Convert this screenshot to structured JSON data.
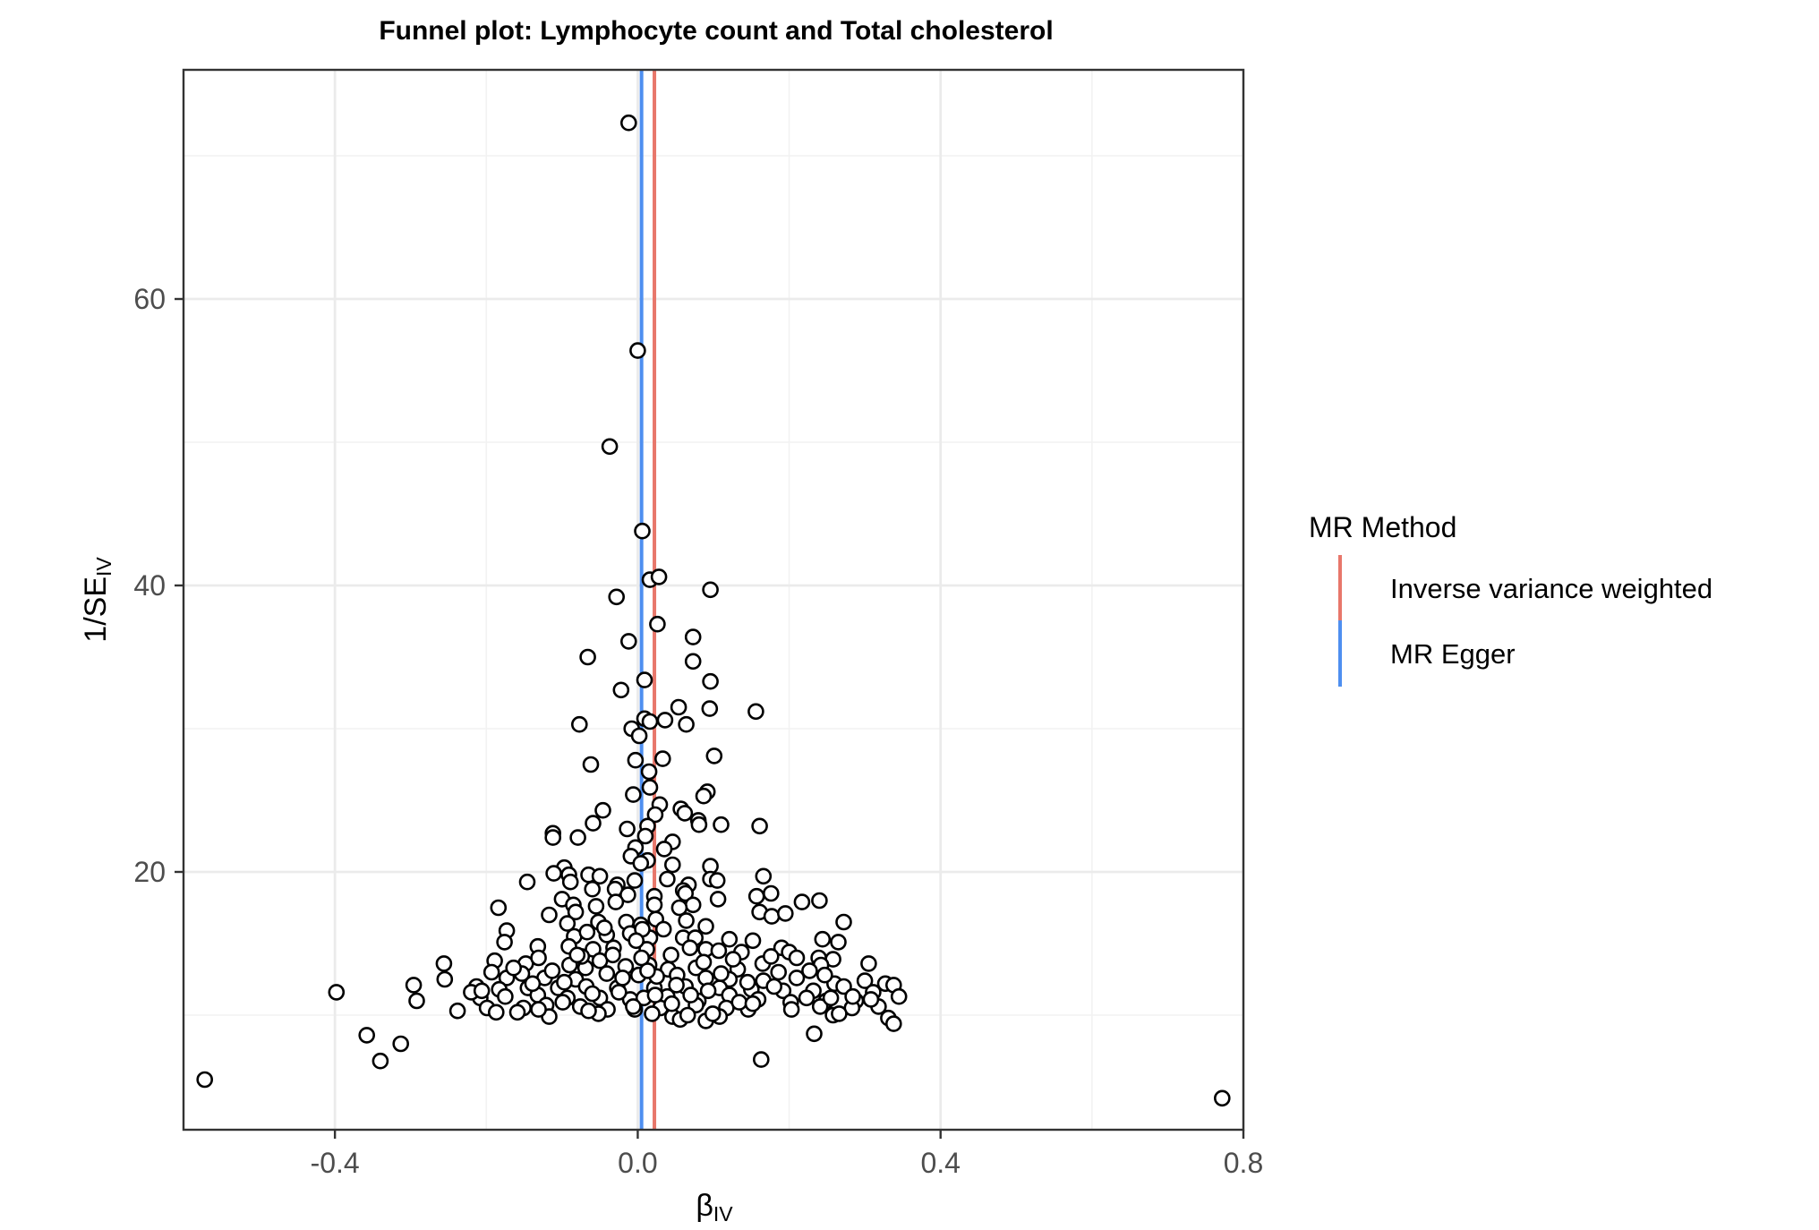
{
  "chart_data": {
    "type": "scatter",
    "title": "Funnel plot: Lymphocyte count and Total cholesterol",
    "xlabel": {
      "main": "β",
      "sub": "IV"
    },
    "ylabel": {
      "main": "1/SE",
      "sub": "IV"
    },
    "xlim": [
      -0.6,
      0.8
    ],
    "ylim": [
      2,
      76
    ],
    "x_ticks": [
      {
        "value": -0.4,
        "label": "-0.4"
      },
      {
        "value": 0.0,
        "label": "0.0"
      },
      {
        "value": 0.4,
        "label": "0.4"
      },
      {
        "value": 0.8,
        "label": "0.8"
      }
    ],
    "y_ticks": [
      {
        "value": 20,
        "label": "20"
      },
      {
        "value": 40,
        "label": "40"
      },
      {
        "value": 60,
        "label": "60"
      }
    ],
    "grid": true,
    "legend": {
      "title": "MR Method",
      "placement": "right",
      "entries": [
        {
          "label": "Inverse variance weighted",
          "color": "#e8776b"
        },
        {
          "label": "MR Egger",
          "color": "#4e8ff0"
        }
      ]
    },
    "lines": [
      {
        "method": "Inverse variance weighted",
        "x": 0.022,
        "color": "#e8776b"
      },
      {
        "method": "MR Egger",
        "x": 0.005,
        "color": "#4e8ff0"
      }
    ],
    "points": [
      [
        -0.012,
        72.3
      ],
      [
        0.0,
        56.4
      ],
      [
        -0.037,
        49.7
      ],
      [
        0.006,
        43.8
      ],
      [
        0.016,
        40.4
      ],
      [
        0.028,
        40.6
      ],
      [
        -0.028,
        39.2
      ],
      [
        0.096,
        39.7
      ],
      [
        0.026,
        37.3
      ],
      [
        -0.012,
        36.1
      ],
      [
        0.073,
        36.4
      ],
      [
        -0.066,
        35.0
      ],
      [
        0.073,
        34.7
      ],
      [
        0.009,
        33.4
      ],
      [
        0.096,
        33.3
      ],
      [
        -0.022,
        32.7
      ],
      [
        0.054,
        31.5
      ],
      [
        0.095,
        31.4
      ],
      [
        0.156,
        31.2
      ],
      [
        0.009,
        30.7
      ],
      [
        0.016,
        30.5
      ],
      [
        0.036,
        30.6
      ],
      [
        0.064,
        30.3
      ],
      [
        -0.077,
        30.3
      ],
      [
        -0.008,
        30.0
      ],
      [
        0.002,
        29.5
      ],
      [
        0.101,
        28.1
      ],
      [
        0.033,
        27.9
      ],
      [
        -0.003,
        27.8
      ],
      [
        -0.062,
        27.5
      ],
      [
        0.015,
        27.0
      ],
      [
        0.016,
        25.9
      ],
      [
        0.092,
        25.6
      ],
      [
        0.087,
        25.3
      ],
      [
        -0.006,
        25.4
      ],
      [
        0.029,
        24.7
      ],
      [
        0.057,
        24.4
      ],
      [
        0.062,
        24.1
      ],
      [
        -0.046,
        24.3
      ],
      [
        0.023,
        24.0
      ],
      [
        0.08,
        23.6
      ],
      [
        0.081,
        23.3
      ],
      [
        0.11,
        23.3
      ],
      [
        0.161,
        23.2
      ],
      [
        0.013,
        23.2
      ],
      [
        -0.059,
        23.4
      ],
      [
        -0.014,
        23.0
      ],
      [
        -0.112,
        22.7
      ],
      [
        -0.112,
        22.4
      ],
      [
        -0.079,
        22.4
      ],
      [
        0.046,
        22.1
      ],
      [
        0.01,
        22.5
      ],
      [
        0.035,
        21.6
      ],
      [
        -0.003,
        21.7
      ],
      [
        -0.009,
        21.1
      ],
      [
        0.013,
        20.8
      ],
      [
        0.046,
        20.5
      ],
      [
        0.096,
        20.4
      ],
      [
        0.004,
        20.6
      ],
      [
        -0.097,
        20.3
      ],
      [
        -0.111,
        19.9
      ],
      [
        -0.091,
        19.8
      ],
      [
        -0.065,
        19.8
      ],
      [
        -0.05,
        19.7
      ],
      [
        0.039,
        19.5
      ],
      [
        0.096,
        19.5
      ],
      [
        0.105,
        19.4
      ],
      [
        0.166,
        19.7
      ],
      [
        -0.004,
        19.4
      ],
      [
        -0.089,
        19.3
      ],
      [
        -0.027,
        19.1
      ],
      [
        0.067,
        19.1
      ],
      [
        -0.146,
        19.3
      ],
      [
        0.06,
        18.7
      ],
      [
        -0.06,
        18.8
      ],
      [
        -0.03,
        18.8
      ],
      [
        -0.013,
        18.4
      ],
      [
        0.022,
        18.3
      ],
      [
        0.063,
        18.5
      ],
      [
        0.106,
        18.1
      ],
      [
        0.157,
        18.3
      ],
      [
        0.176,
        18.5
      ],
      [
        0.217,
        17.9
      ],
      [
        0.24,
        18.0
      ],
      [
        -0.1,
        18.1
      ],
      [
        -0.085,
        17.7
      ],
      [
        -0.055,
        17.6
      ],
      [
        -0.029,
        17.9
      ],
      [
        0.022,
        17.7
      ],
      [
        0.073,
        17.7
      ],
      [
        0.055,
        17.5
      ],
      [
        -0.082,
        17.2
      ],
      [
        -0.117,
        17.0
      ],
      [
        -0.184,
        17.5
      ],
      [
        0.161,
        17.2
      ],
      [
        0.177,
        16.9
      ],
      [
        0.195,
        17.1
      ],
      [
        -0.093,
        16.4
      ],
      [
        -0.052,
        16.5
      ],
      [
        -0.015,
        16.5
      ],
      [
        0.004,
        16.3
      ],
      [
        0.024,
        16.7
      ],
      [
        0.064,
        16.6
      ],
      [
        0.09,
        16.2
      ],
      [
        0.272,
        16.5
      ],
      [
        -0.173,
        15.9
      ],
      [
        -0.084,
        15.5
      ],
      [
        -0.067,
        15.8
      ],
      [
        -0.041,
        15.6
      ],
      [
        -0.01,
        15.7
      ],
      [
        0.016,
        15.4
      ],
      [
        0.06,
        15.4
      ],
      [
        0.076,
        15.4
      ],
      [
        0.121,
        15.3
      ],
      [
        0.152,
        15.2
      ],
      [
        0.244,
        15.3
      ],
      [
        0.265,
        15.1
      ],
      [
        -0.176,
        15.1
      ],
      [
        -0.132,
        14.8
      ],
      [
        -0.091,
        14.8
      ],
      [
        -0.059,
        14.6
      ],
      [
        -0.032,
        14.7
      ],
      [
        0.012,
        14.6
      ],
      [
        0.069,
        14.7
      ],
      [
        0.09,
        14.6
      ],
      [
        0.107,
        14.5
      ],
      [
        0.137,
        14.4
      ],
      [
        0.19,
        14.7
      ],
      [
        0.2,
        14.4
      ],
      [
        0.21,
        14.0
      ],
      [
        0.239,
        14.0
      ],
      [
        0.258,
        13.9
      ],
      [
        -0.256,
        13.6
      ],
      [
        -0.189,
        13.8
      ],
      [
        -0.148,
        13.6
      ],
      [
        -0.131,
        14.0
      ],
      [
        -0.09,
        13.5
      ],
      [
        -0.069,
        13.3
      ],
      [
        -0.05,
        13.8
      ],
      [
        -0.016,
        13.4
      ],
      [
        0.015,
        13.5
      ],
      [
        0.04,
        13.2
      ],
      [
        0.077,
        13.3
      ],
      [
        0.132,
        13.2
      ],
      [
        0.165,
        13.6
      ],
      [
        0.242,
        13.5
      ],
      [
        0.305,
        13.6
      ],
      [
        -0.193,
        13.0
      ],
      [
        -0.173,
        12.6
      ],
      [
        -0.153,
        12.9
      ],
      [
        -0.123,
        12.6
      ],
      [
        -0.082,
        12.5
      ],
      [
        -0.041,
        12.9
      ],
      [
        0.001,
        12.8
      ],
      [
        0.052,
        12.8
      ],
      [
        0.09,
        12.6
      ],
      [
        0.121,
        12.5
      ],
      [
        0.166,
        12.4
      ],
      [
        0.21,
        12.6
      ],
      [
        0.26,
        12.2
      ],
      [
        0.3,
        12.4
      ],
      [
        0.327,
        12.2
      ],
      [
        0.338,
        12.1
      ],
      [
        -0.296,
        12.1
      ],
      [
        -0.255,
        12.5
      ],
      [
        -0.213,
        12.0
      ],
      [
        -0.183,
        11.8
      ],
      [
        -0.145,
        11.9
      ],
      [
        -0.105,
        11.9
      ],
      [
        -0.068,
        12.0
      ],
      [
        -0.027,
        11.9
      ],
      [
        0.022,
        11.9
      ],
      [
        0.063,
        12.0
      ],
      [
        0.108,
        11.9
      ],
      [
        0.15,
        11.8
      ],
      [
        0.192,
        11.7
      ],
      [
        0.232,
        11.7
      ],
      [
        0.272,
        12.0
      ],
      [
        0.311,
        11.6
      ],
      [
        -0.398,
        11.6
      ],
      [
        -0.208,
        11.2
      ],
      [
        -0.175,
        11.3
      ],
      [
        -0.132,
        11.4
      ],
      [
        -0.093,
        11.2
      ],
      [
        -0.05,
        11.2
      ],
      [
        -0.01,
        11.1
      ],
      [
        0.039,
        11.3
      ],
      [
        0.08,
        11.0
      ],
      [
        0.121,
        11.4
      ],
      [
        0.159,
        11.1
      ],
      [
        0.202,
        10.9
      ],
      [
        0.249,
        11.0
      ],
      [
        0.288,
        11.0
      ],
      [
        0.345,
        11.3
      ],
      [
        -0.292,
        11.0
      ],
      [
        -0.199,
        10.5
      ],
      [
        -0.151,
        10.5
      ],
      [
        -0.121,
        10.7
      ],
      [
        -0.076,
        10.6
      ],
      [
        -0.04,
        10.4
      ],
      [
        -0.004,
        10.4
      ],
      [
        0.03,
        10.5
      ],
      [
        0.077,
        10.7
      ],
      [
        0.117,
        10.5
      ],
      [
        0.146,
        10.4
      ],
      [
        0.203,
        10.4
      ],
      [
        0.241,
        10.6
      ],
      [
        0.283,
        10.5
      ],
      [
        0.318,
        10.6
      ],
      [
        -0.238,
        10.3
      ],
      [
        -0.187,
        10.2
      ],
      [
        -0.159,
        10.2
      ],
      [
        -0.117,
        9.9
      ],
      [
        -0.052,
        10.1
      ],
      [
        0.019,
        10.1
      ],
      [
        0.046,
        9.9
      ],
      [
        0.056,
        9.7
      ],
      [
        0.09,
        9.6
      ],
      [
        0.108,
        9.9
      ],
      [
        0.258,
        10.0
      ],
      [
        0.331,
        9.8
      ],
      [
        0.338,
        9.4
      ],
      [
        0.233,
        8.7
      ],
      [
        -0.358,
        8.6
      ],
      [
        -0.313,
        8.0
      ],
      [
        -0.34,
        6.8
      ],
      [
        0.163,
        6.9
      ],
      [
        -0.572,
        5.5
      ],
      [
        0.772,
        4.2
      ],
      [
        -0.099,
        10.9
      ],
      [
        -0.065,
        10.3
      ],
      [
        -0.025,
        11.6
      ],
      [
        0.008,
        11.2
      ],
      [
        0.045,
        10.8
      ],
      [
        0.093,
        11.7
      ],
      [
        0.134,
        10.9
      ],
      [
        0.18,
        12.0
      ],
      [
        0.223,
        11.2
      ],
      [
        -0.139,
        12.2
      ],
      [
        -0.097,
        12.3
      ],
      [
        -0.06,
        11.5
      ],
      [
        -0.02,
        12.6
      ],
      [
        0.025,
        12.7
      ],
      [
        0.07,
        11.4
      ],
      [
        0.11,
        12.9
      ],
      [
        0.145,
        12.3
      ],
      [
        0.186,
        13.0
      ],
      [
        0.227,
        13.1
      ],
      [
        -0.164,
        13.3
      ],
      [
        -0.113,
        13.1
      ],
      [
        -0.074,
        14.1
      ],
      [
        -0.033,
        14.2
      ],
      [
        0.005,
        14.0
      ],
      [
        0.044,
        14.2
      ],
      [
        0.087,
        13.7
      ],
      [
        0.126,
        13.9
      ],
      [
        0.176,
        14.1
      ],
      [
        0.247,
        12.8
      ],
      [
        -0.22,
        11.6
      ],
      [
        0.284,
        11.3
      ],
      [
        0.006,
        16.0
      ],
      [
        -0.044,
        16.1
      ],
      [
        0.034,
        16.0
      ],
      [
        -0.08,
        14.2
      ],
      [
        -0.002,
        15.2
      ],
      [
        0.013,
        13.1
      ],
      [
        0.051,
        12.1
      ],
      [
        0.099,
        10.1
      ],
      [
        0.152,
        10.8
      ],
      [
        0.266,
        10.1
      ],
      [
        -0.006,
        10.6
      ],
      [
        0.023,
        11.4
      ],
      [
        -0.131,
        10.4
      ],
      [
        0.066,
        10.0
      ],
      [
        -0.206,
        11.7
      ],
      [
        0.308,
        11.1
      ],
      [
        0.255,
        11.2
      ]
    ]
  }
}
